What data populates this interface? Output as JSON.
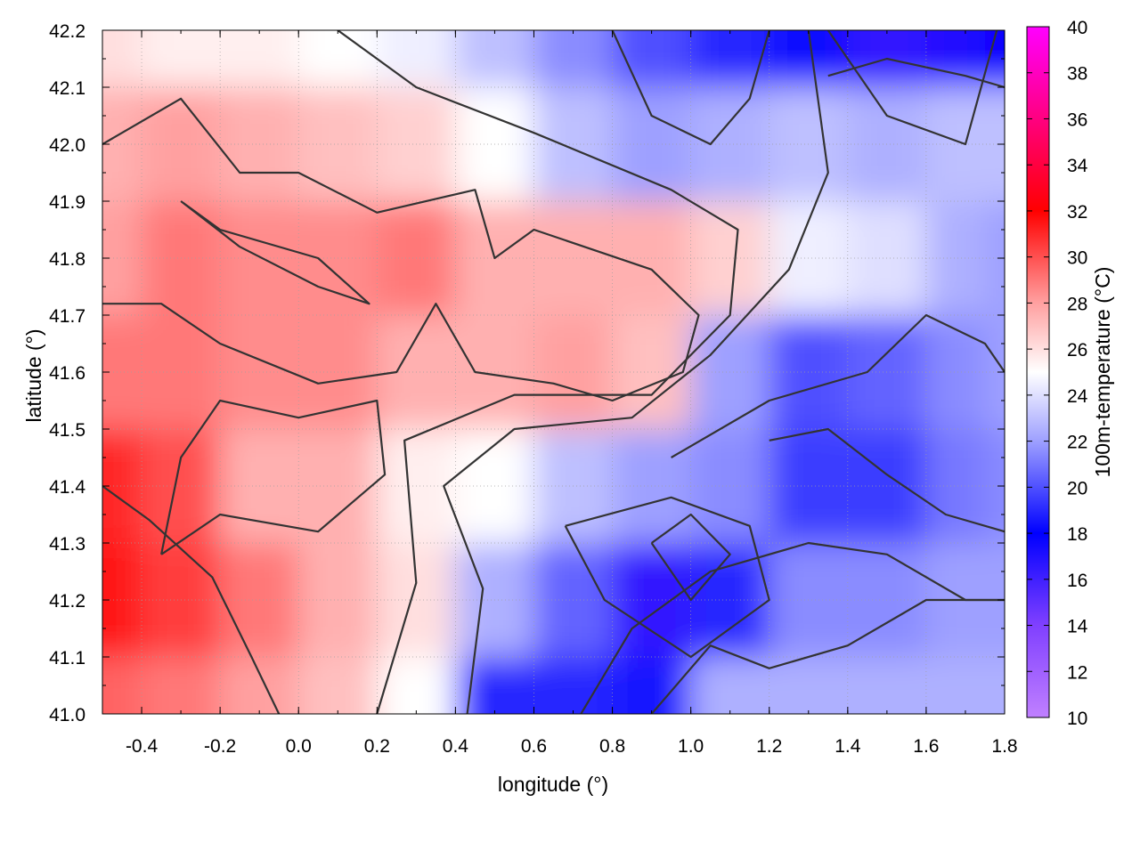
{
  "chart_data": {
    "type": "heatmap",
    "title": "",
    "xlabel": "longitude (°)",
    "ylabel": "latitude (°)",
    "colorbar_label": "100m-temperature (°C)",
    "xlim": [
      -0.5,
      1.8
    ],
    "ylim": [
      41.0,
      42.2
    ],
    "clim": [
      10,
      40
    ],
    "grid": true,
    "x_ticks": [
      {
        "value": -0.4,
        "label": "-0.4"
      },
      {
        "value": -0.2,
        "label": "-0.2"
      },
      {
        "value": 0.0,
        "label": "0.0"
      },
      {
        "value": 0.2,
        "label": "0.2"
      },
      {
        "value": 0.4,
        "label": "0.4"
      },
      {
        "value": 0.6,
        "label": "0.6"
      },
      {
        "value": 0.8,
        "label": "0.8"
      },
      {
        "value": 1.0,
        "label": "1.0"
      },
      {
        "value": 1.2,
        "label": "1.2"
      },
      {
        "value": 1.4,
        "label": "1.4"
      },
      {
        "value": 1.6,
        "label": "1.6"
      },
      {
        "value": 1.8,
        "label": "1.8"
      }
    ],
    "y_ticks": [
      {
        "value": 41.0,
        "label": "41.0"
      },
      {
        "value": 41.1,
        "label": "41.1"
      },
      {
        "value": 41.2,
        "label": "41.2"
      },
      {
        "value": 41.3,
        "label": "41.3"
      },
      {
        "value": 41.4,
        "label": "41.4"
      },
      {
        "value": 41.5,
        "label": "41.5"
      },
      {
        "value": 41.6,
        "label": "41.6"
      },
      {
        "value": 41.7,
        "label": "41.7"
      },
      {
        "value": 41.8,
        "label": "41.8"
      },
      {
        "value": 41.9,
        "label": "41.9"
      },
      {
        "value": 42.0,
        "label": "42.0"
      },
      {
        "value": 42.1,
        "label": "42.1"
      },
      {
        "value": 42.2,
        "label": "42.2"
      }
    ],
    "colorbar_ticks": [
      {
        "value": 10,
        "label": "10"
      },
      {
        "value": 12,
        "label": "12"
      },
      {
        "value": 14,
        "label": "14"
      },
      {
        "value": 16,
        "label": "16"
      },
      {
        "value": 18,
        "label": "18"
      },
      {
        "value": 20,
        "label": "20"
      },
      {
        "value": 22,
        "label": "22"
      },
      {
        "value": 24,
        "label": "24"
      },
      {
        "value": 26,
        "label": "26"
      },
      {
        "value": 28,
        "label": "28"
      },
      {
        "value": 30,
        "label": "30"
      },
      {
        "value": 32,
        "label": "32"
      },
      {
        "value": 34,
        "label": "34"
      },
      {
        "value": 36,
        "label": "36"
      },
      {
        "value": 38,
        "label": "38"
      },
      {
        "value": 40,
        "label": "40"
      }
    ],
    "colormap": [
      {
        "value": 10,
        "color": "#c080ff"
      },
      {
        "value": 14,
        "color": "#8040ff"
      },
      {
        "value": 18,
        "color": "#0000ff"
      },
      {
        "value": 22,
        "color": "#9ea0ff"
      },
      {
        "value": 25,
        "color": "#ffffff"
      },
      {
        "value": 28,
        "color": "#ffa0a0"
      },
      {
        "value": 32,
        "color": "#ff0000"
      },
      {
        "value": 36,
        "color": "#ff0080"
      },
      {
        "value": 40,
        "color": "#ff00ff"
      }
    ],
    "field_grid": {
      "lon": [
        -0.5,
        -0.3,
        -0.1,
        0.1,
        0.3,
        0.5,
        0.7,
        0.9,
        1.1,
        1.3,
        1.5,
        1.7,
        1.8
      ],
      "lat": [
        42.2,
        42.0,
        41.8,
        41.6,
        41.4,
        41.2,
        41.0
      ],
      "temperature": [
        [
          26.0,
          25.5,
          25.5,
          25.0,
          24.5,
          23.0,
          21.5,
          20.0,
          19.0,
          17.5,
          16.5,
          17.0,
          18.0
        ],
        [
          27.5,
          28.0,
          27.5,
          27.0,
          26.5,
          25.0,
          23.0,
          22.0,
          22.5,
          23.0,
          22.5,
          23.0,
          23.0
        ],
        [
          28.0,
          29.0,
          28.5,
          28.5,
          29.0,
          27.5,
          27.5,
          27.5,
          26.5,
          24.5,
          24.0,
          22.5,
          22.0
        ],
        [
          29.0,
          29.0,
          28.5,
          28.5,
          27.5,
          27.5,
          28.0,
          27.0,
          22.0,
          20.0,
          20.5,
          21.5,
          22.0
        ],
        [
          31.0,
          30.0,
          27.5,
          27.5,
          25.5,
          25.0,
          23.0,
          22.0,
          21.5,
          19.5,
          19.5,
          21.0,
          21.5
        ],
        [
          31.5,
          30.5,
          29.0,
          27.5,
          26.0,
          22.5,
          20.5,
          16.5,
          19.0,
          21.5,
          21.5,
          22.0,
          22.0
        ],
        [
          29.5,
          29.0,
          28.0,
          27.0,
          25.0,
          19.0,
          19.0,
          18.5,
          22.5,
          22.5,
          22.5,
          22.5,
          22.5
        ]
      ]
    },
    "isotherms": [
      {
        "level": 24,
        "points": [
          [
            0.43,
            41.0
          ],
          [
            0.47,
            41.22
          ],
          [
            0.37,
            41.4
          ],
          [
            0.55,
            41.5
          ],
          [
            0.85,
            41.52
          ],
          [
            1.05,
            41.63
          ],
          [
            1.25,
            41.78
          ],
          [
            1.35,
            41.95
          ],
          [
            1.3,
            42.2
          ]
        ]
      },
      {
        "level": 24,
        "points": [
          [
            0.68,
            41.33
          ],
          [
            0.95,
            41.38
          ],
          [
            1.15,
            41.33
          ],
          [
            1.2,
            41.2
          ],
          [
            1.0,
            41.1
          ],
          [
            0.78,
            41.2
          ],
          [
            0.68,
            41.33
          ]
        ]
      },
      {
        "level": 26,
        "points": [
          [
            0.2,
            41.0
          ],
          [
            0.3,
            41.23
          ],
          [
            0.27,
            41.48
          ],
          [
            0.55,
            41.56
          ],
          [
            0.9,
            41.56
          ],
          [
            1.1,
            41.7
          ],
          [
            1.12,
            41.85
          ],
          [
            0.95,
            41.92
          ],
          [
            0.6,
            42.02
          ],
          [
            0.3,
            42.1
          ],
          [
            0.1,
            42.2
          ]
        ]
      },
      {
        "level": 26,
        "points": [
          [
            1.35,
            42.2
          ],
          [
            1.5,
            42.05
          ],
          [
            1.7,
            42.0
          ],
          [
            1.78,
            42.2
          ]
        ]
      },
      {
        "level": 28,
        "points": [
          [
            -0.5,
            42.0
          ],
          [
            -0.3,
            42.08
          ],
          [
            -0.15,
            41.95
          ],
          [
            0.0,
            41.95
          ],
          [
            0.2,
            41.88
          ],
          [
            0.45,
            41.92
          ],
          [
            0.5,
            41.8
          ],
          [
            0.6,
            41.85
          ],
          [
            0.9,
            41.78
          ],
          [
            1.02,
            41.7
          ],
          [
            0.98,
            41.6
          ],
          [
            0.8,
            41.55
          ],
          [
            0.65,
            41.58
          ],
          [
            0.45,
            41.6
          ],
          [
            0.35,
            41.72
          ],
          [
            0.25,
            41.6
          ],
          [
            0.05,
            41.58
          ],
          [
            -0.2,
            41.65
          ],
          [
            -0.35,
            41.72
          ],
          [
            -0.5,
            41.72
          ]
        ]
      },
      {
        "level": 28,
        "points": [
          [
            -0.35,
            41.28
          ],
          [
            -0.2,
            41.35
          ],
          [
            0.05,
            41.32
          ],
          [
            0.22,
            41.42
          ],
          [
            0.2,
            41.55
          ],
          [
            0.0,
            41.52
          ],
          [
            -0.2,
            41.55
          ],
          [
            -0.3,
            41.45
          ],
          [
            -0.35,
            41.28
          ]
        ]
      },
      {
        "level": 30,
        "points": [
          [
            -0.5,
            41.4
          ],
          [
            -0.38,
            41.34
          ],
          [
            -0.22,
            41.24
          ],
          [
            -0.12,
            41.1
          ],
          [
            -0.05,
            41.0
          ]
        ]
      },
      {
        "level": 30,
        "points": [
          [
            -0.3,
            41.9
          ],
          [
            -0.15,
            41.82
          ],
          [
            0.05,
            41.75
          ],
          [
            0.18,
            41.72
          ],
          [
            0.05,
            41.8
          ],
          [
            -0.2,
            41.85
          ],
          [
            -0.3,
            41.9
          ]
        ]
      },
      {
        "level": 22,
        "points": [
          [
            0.95,
            41.45
          ],
          [
            1.2,
            41.55
          ],
          [
            1.45,
            41.6
          ],
          [
            1.6,
            41.7
          ],
          [
            1.75,
            41.65
          ],
          [
            1.8,
            41.6
          ]
        ]
      },
      {
        "level": 22,
        "points": [
          [
            0.72,
            41.0
          ],
          [
            0.85,
            41.15
          ],
          [
            1.05,
            41.25
          ],
          [
            1.3,
            41.3
          ],
          [
            1.5,
            41.28
          ],
          [
            1.7,
            41.2
          ],
          [
            1.8,
            41.2
          ]
        ]
      },
      {
        "level": 22,
        "points": [
          [
            0.8,
            42.2
          ],
          [
            0.9,
            42.05
          ],
          [
            1.05,
            42.0
          ],
          [
            1.15,
            42.08
          ],
          [
            1.2,
            42.2
          ]
        ]
      },
      {
        "level": 20,
        "points": [
          [
            1.2,
            41.48
          ],
          [
            1.35,
            41.5
          ],
          [
            1.5,
            41.42
          ],
          [
            1.65,
            41.35
          ],
          [
            1.8,
            41.32
          ]
        ]
      },
      {
        "level": 20,
        "points": [
          [
            0.9,
            41.3
          ],
          [
            1.0,
            41.35
          ],
          [
            1.1,
            41.28
          ],
          [
            1.0,
            41.2
          ],
          [
            0.9,
            41.3
          ]
        ]
      },
      {
        "level": 20,
        "points": [
          [
            1.35,
            42.12
          ],
          [
            1.5,
            42.15
          ],
          [
            1.7,
            42.12
          ],
          [
            1.8,
            42.1
          ]
        ]
      },
      {
        "level": 22,
        "points": [
          [
            0.9,
            41.0
          ],
          [
            1.05,
            41.12
          ],
          [
            1.2,
            41.08
          ],
          [
            1.4,
            41.12
          ],
          [
            1.6,
            41.2
          ],
          [
            1.8,
            41.2
          ]
        ]
      }
    ]
  }
}
